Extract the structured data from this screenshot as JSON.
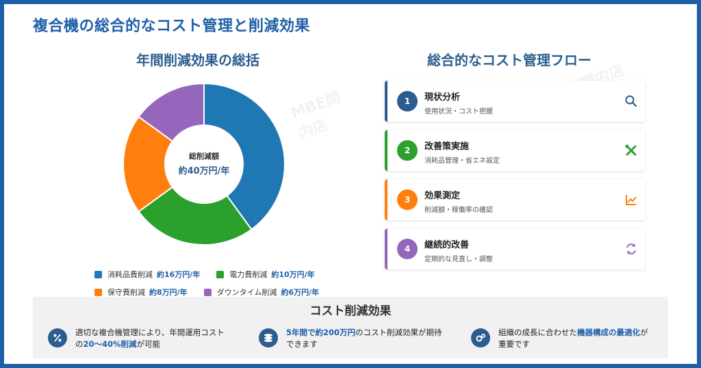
{
  "title": "複合機の総合的なコスト管理と削減効果",
  "watermark": "MBE関内店",
  "left_panel": {
    "title": "年間削減効果の総括",
    "center_label": "総削減額",
    "center_value": "約40万円/年"
  },
  "chart_data": {
    "type": "pie",
    "categories": [
      "消耗品費削減",
      "電力費削減",
      "保守費削減",
      "ダウンタイム削減"
    ],
    "values": [
      16,
      10,
      8,
      6
    ],
    "value_labels": [
      "約16万円/年",
      "約10万円/年",
      "約8万円/年",
      "約6万円/年"
    ],
    "colors": [
      "#1f77b4",
      "#2ca02c",
      "#ff7f0e",
      "#9467bd"
    ],
    "donut": true,
    "legend_position": "bottom"
  },
  "right_panel": {
    "title": "総合的なコスト管理フロー",
    "steps": [
      {
        "num": "1",
        "title": "現状分析",
        "desc": "使用状況・コスト把握",
        "color": "#2c5d8f",
        "icon": "search-icon"
      },
      {
        "num": "2",
        "title": "改善策実施",
        "desc": "消耗品管理・省エネ設定",
        "color": "#2ca02c",
        "icon": "tools-icon"
      },
      {
        "num": "3",
        "title": "効果測定",
        "desc": "削減額・稼働率の確認",
        "color": "#ff7f0e",
        "icon": "line-chart-icon"
      },
      {
        "num": "4",
        "title": "継続的改善",
        "desc": "定期的な見直し・調整",
        "color": "#9467bd",
        "icon": "refresh-icon"
      }
    ]
  },
  "bottom": {
    "title": "コスト削減効果",
    "effects": [
      {
        "icon": "percent-icon",
        "text1": "適切な複合機管理により、年間運用コスト",
        "text2_pre": "の",
        "text2_hl": "20〜40%削減",
        "text2_post": "が可能"
      },
      {
        "icon": "coins-icon",
        "text1_hl": "5年間で約200万円",
        "text1_post": "のコスト削減効果が期待",
        "text2": "できます"
      },
      {
        "icon": "gears-icon",
        "text1_pre": "組織の成長に合わせた",
        "text1_hl": "機器構成の最適化",
        "text1_post": "が",
        "text2": "重要です"
      }
    ]
  }
}
